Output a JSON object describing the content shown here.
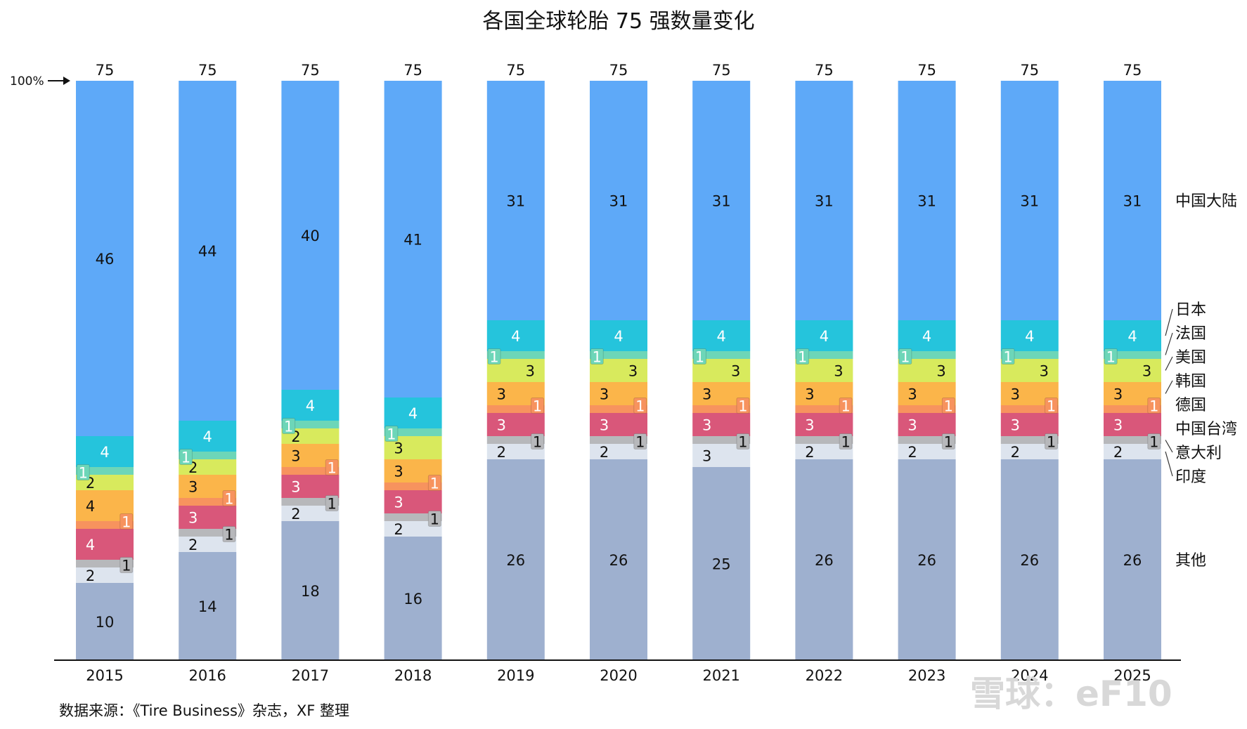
{
  "chart_data": {
    "type": "bar",
    "stacked": true,
    "title": "各国全球轮胎 75 强数量变化",
    "categories": [
      "2015",
      "2016",
      "2017",
      "2018",
      "2019",
      "2020",
      "2021",
      "2022",
      "2023",
      "2024",
      "2025"
    ],
    "totals": [
      75,
      75,
      75,
      75,
      75,
      75,
      75,
      75,
      75,
      75,
      75
    ],
    "top_marker": "100%",
    "series": [
      {
        "name": "其他",
        "color": "#9eb0cf",
        "values": [
          10,
          14,
          18,
          16,
          26,
          26,
          25,
          26,
          26,
          26,
          26
        ]
      },
      {
        "name": "印度",
        "color": "#dde4ee",
        "values": [
          2,
          2,
          2,
          2,
          2,
          2,
          3,
          2,
          2,
          2,
          2
        ]
      },
      {
        "name": "意大利",
        "color": "#b7b8bb",
        "values": [
          1,
          1,
          1,
          1,
          1,
          1,
          1,
          1,
          1,
          1,
          1
        ]
      },
      {
        "name": "中国台湾",
        "color": "#d9577a",
        "values": [
          4,
          3,
          3,
          3,
          3,
          3,
          3,
          3,
          3,
          3,
          3
        ]
      },
      {
        "name": "德国",
        "color": "#f7935e",
        "values": [
          1,
          1,
          1,
          1,
          1,
          1,
          1,
          1,
          1,
          1,
          1
        ]
      },
      {
        "name": "韩国",
        "color": "#fbb54a",
        "values": [
          4,
          3,
          3,
          3,
          3,
          3,
          3,
          3,
          3,
          3,
          3
        ]
      },
      {
        "name": "美国",
        "color": "#d8ea5d",
        "values": [
          2,
          2,
          2,
          3,
          3,
          3,
          3,
          3,
          3,
          3,
          3
        ]
      },
      {
        "name": "法国",
        "color": "#6dd6b8",
        "values": [
          1,
          1,
          1,
          1,
          1,
          1,
          1,
          1,
          1,
          1,
          1
        ]
      },
      {
        "name": "日本",
        "color": "#25c4dc",
        "values": [
          4,
          4,
          4,
          4,
          4,
          4,
          4,
          4,
          4,
          4,
          4
        ]
      },
      {
        "name": "中国大陆",
        "color": "#5ea9f8",
        "values": [
          46,
          44,
          40,
          41,
          31,
          31,
          31,
          31,
          31,
          31,
          31
        ]
      }
    ],
    "legend_placement": "right",
    "grid": false
  },
  "source": "数据来源：《Tire Business》杂志，XF 整理",
  "watermark": "雪球：eF10"
}
